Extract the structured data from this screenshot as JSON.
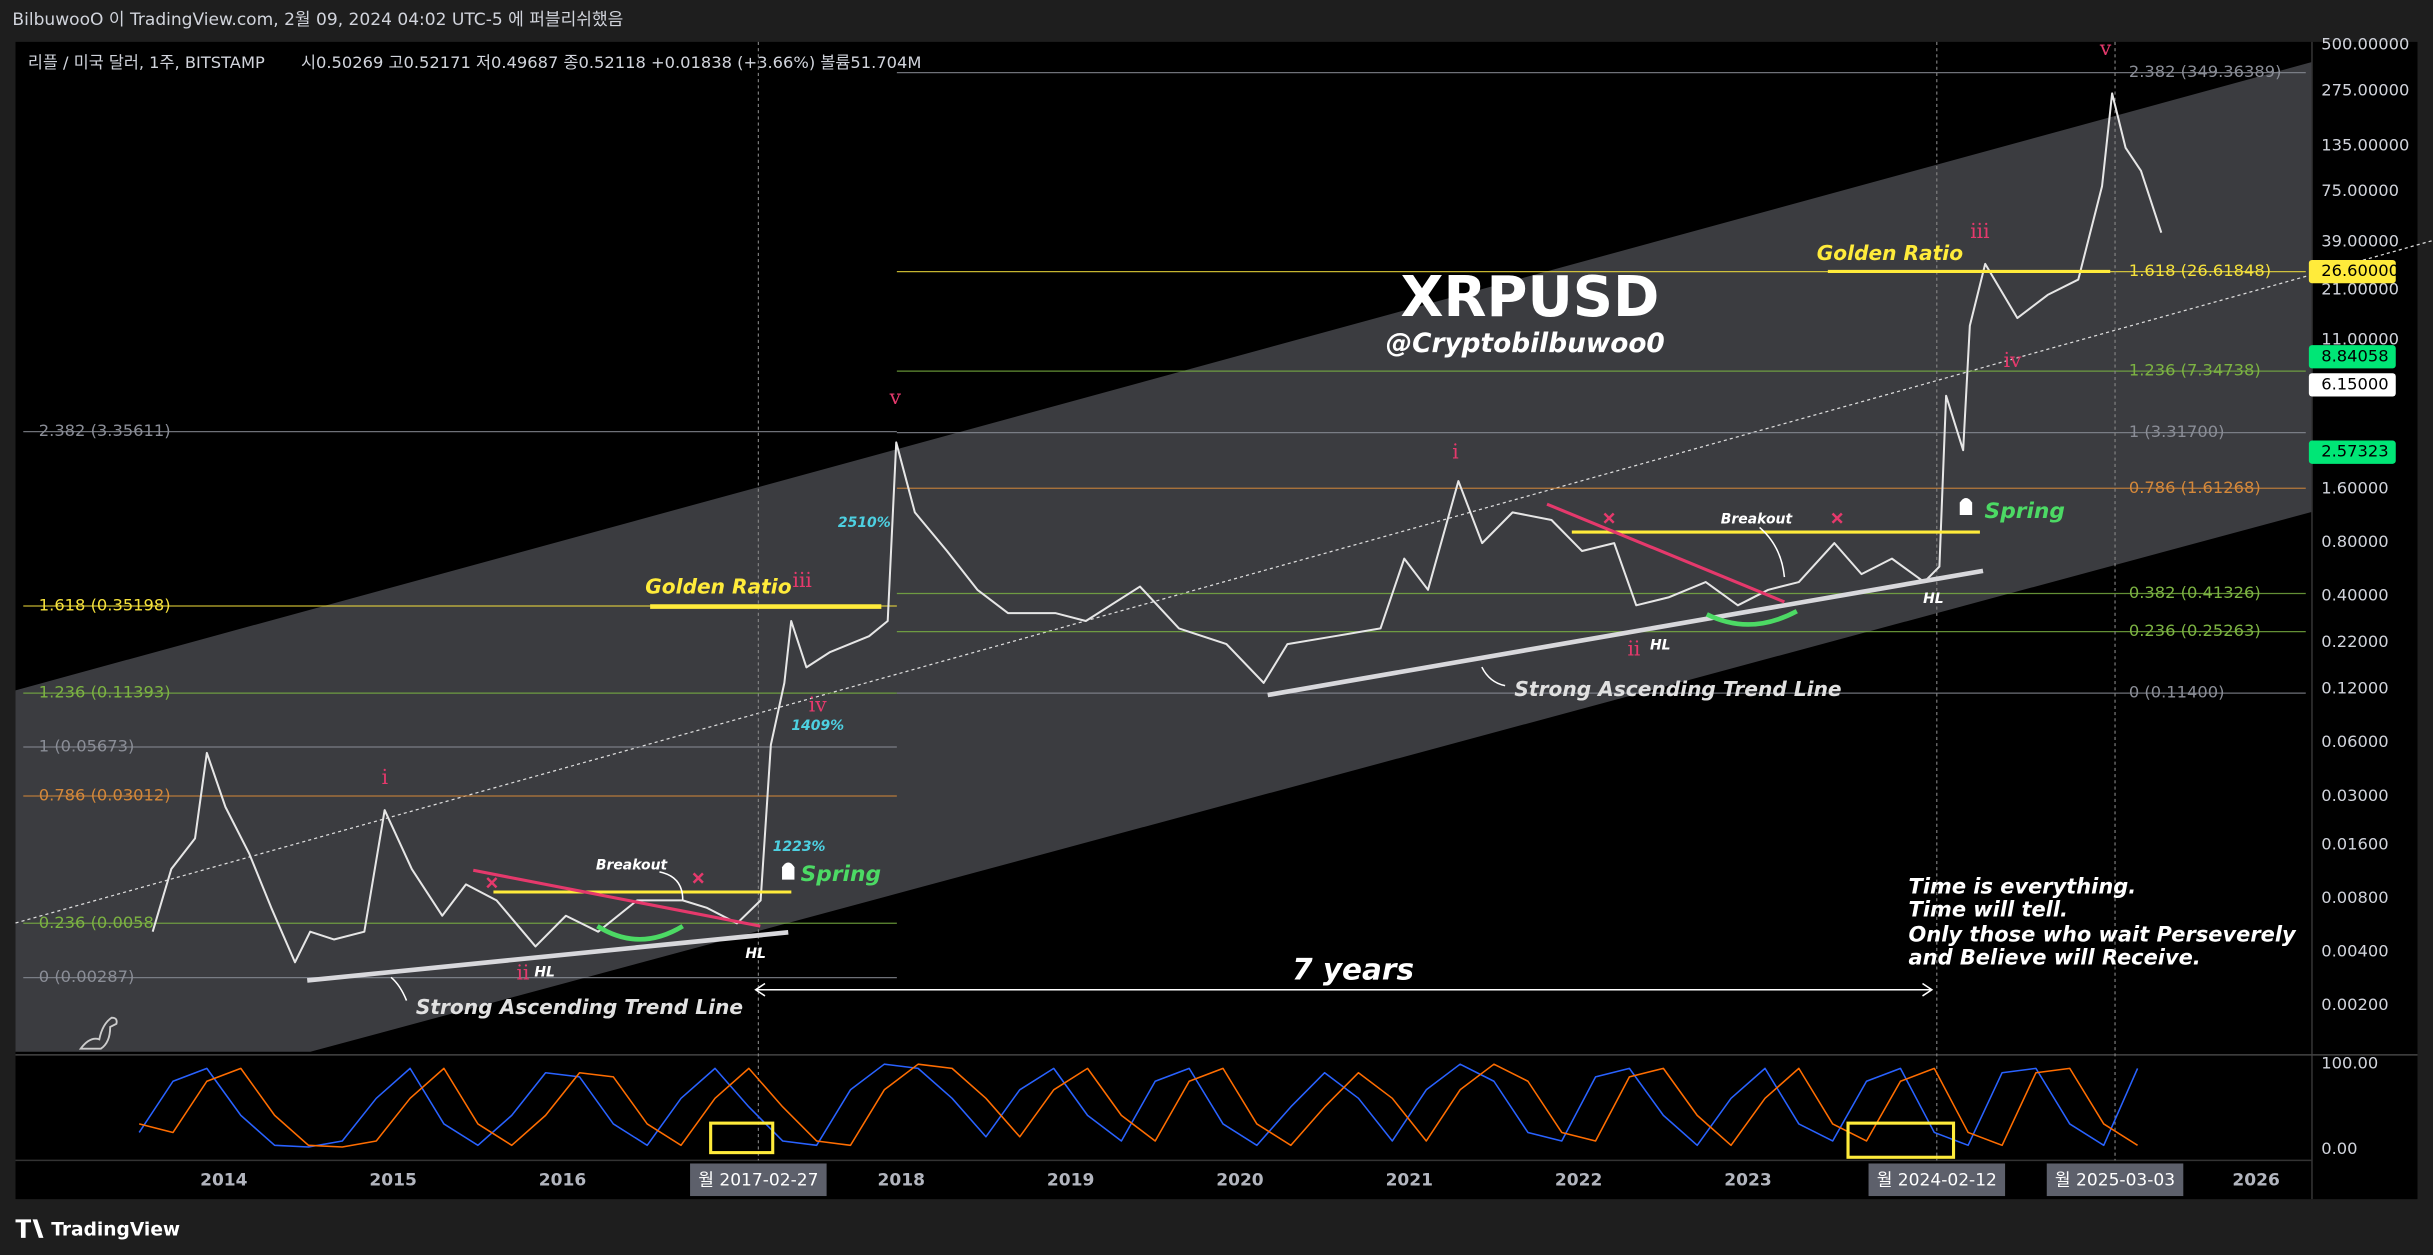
{
  "header": {
    "publisher": "BilbuwooO 이 TradingView.com, 2월 09, 2024 04:02 UTC-5 에 퍼블리쉬했음",
    "symbol": "리플 / 미국 달러, 1주, BITSTAMP",
    "ohlc": "시0.50269 고0.52171 저0.49687 종0.52118 +0.01838 (+3.66%) 볼륨51.704M"
  },
  "chart_data": [
    {
      "type": "line",
      "title": "XRPUSD",
      "subtitle": "@Cryptobilbuwoo0",
      "log_scale": true,
      "color": "#e6e6e6",
      "x": [
        2013.58,
        2013.69,
        2013.83,
        2013.9,
        2014.01,
        2014.15,
        2014.28,
        2014.42,
        2014.51,
        2014.65,
        2014.83,
        2014.95,
        2015.11,
        2015.29,
        2015.43,
        2015.61,
        2015.84,
        2016.02,
        2016.21,
        2016.44,
        2016.71,
        2016.85,
        2017.03,
        2017.17,
        2017.23,
        2017.31,
        2017.35,
        2017.44,
        2017.58,
        2017.81,
        2017.92,
        2017.97,
        2018.08,
        2018.27,
        2018.45,
        2018.63,
        2018.91,
        2019.09,
        2019.41,
        2019.64,
        2019.92,
        2020.14,
        2020.28,
        2020.56,
        2020.83,
        2020.97,
        2021.11,
        2021.29,
        2021.43,
        2021.61,
        2021.84,
        2022.02,
        2022.21,
        2022.34,
        2022.53,
        2022.75,
        2022.94,
        2023.12,
        2023.3,
        2023.51,
        2023.67,
        2023.85,
        2024.04,
        2024.13,
        2024.17,
        2024.27,
        2024.31,
        2024.4,
        2024.59,
        2024.77,
        2024.95,
        2025.09,
        2025.15,
        2025.23,
        2025.32,
        2025.44
      ],
      "values": [
        0.0052,
        0.0117,
        0.0174,
        0.0526,
        0.0261,
        0.0143,
        0.0071,
        0.0035,
        0.0052,
        0.0047,
        0.0052,
        0.0251,
        0.0117,
        0.0064,
        0.0096,
        0.0078,
        0.0043,
        0.0064,
        0.0052,
        0.0078,
        0.0078,
        0.0071,
        0.0058,
        0.0078,
        0.0584,
        0.13,
        0.29,
        0.159,
        0.194,
        0.238,
        0.29,
        2.92,
        1.18,
        0.716,
        0.434,
        0.321,
        0.321,
        0.29,
        0.452,
        0.263,
        0.215,
        0.13,
        0.215,
        0.238,
        0.263,
        0.649,
        0.434,
        1.77,
        0.793,
        1.18,
        1.07,
        0.716,
        0.793,
        0.355,
        0.393,
        0.48,
        0.355,
        0.434,
        0.48,
        0.793,
        0.531,
        0.649,
        0.48,
        0.586,
        5.34,
        2.64,
        13.2,
        29.4,
        14.6,
        19.7,
        24.0,
        80.2,
        267,
        132,
        98,
        44
      ],
      "xlim": [
        2012.77,
        2026.33
      ],
      "ylim": [
        0.0011,
        520
      ],
      "xticks": [
        2014,
        2015,
        2016,
        2018,
        2019,
        2020,
        2021,
        2022,
        2023,
        2026
      ],
      "yticks": [
        {
          "value": 500,
          "label": "500.00000"
        },
        {
          "value": 275,
          "label": "275.00000"
        },
        {
          "value": 135,
          "label": "135.00000"
        },
        {
          "value": 75,
          "label": "75.00000"
        },
        {
          "value": 39,
          "label": "39.00000"
        },
        {
          "value": 21,
          "label": "21.00000"
        },
        {
          "value": 11,
          "label": "11.00000"
        },
        {
          "value": 1.6,
          "label": "1.60000"
        },
        {
          "value": 0.8,
          "label": "0.80000"
        },
        {
          "value": 0.4,
          "label": "0.40000"
        },
        {
          "value": 0.22,
          "label": "0.22000"
        },
        {
          "value": 0.12,
          "label": "0.12000"
        },
        {
          "value": 0.06,
          "label": "0.06000"
        },
        {
          "value": 0.03,
          "label": "0.03000"
        },
        {
          "value": 0.016,
          "label": "0.01600"
        },
        {
          "value": 0.008,
          "label": "0.00800"
        },
        {
          "value": 0.004,
          "label": "0.00400"
        },
        {
          "value": 0.002,
          "label": "0.00200"
        }
      ],
      "price_labels": [
        {
          "value": 26.6,
          "label": "26.60000",
          "color": "#ffeb3b"
        },
        {
          "value": 8.84058,
          "label": "8.84058",
          "color": "#00e676"
        },
        {
          "value": 6.15,
          "label": "6.15000",
          "color": "#ffffff"
        },
        {
          "value": 2.57323,
          "label": "2.57323",
          "color": "#00e676"
        }
      ],
      "fib_left": [
        {
          "value": 3.35611,
          "label": "2.382 (3.35611)",
          "color": "#8a8d96"
        },
        {
          "value": 0.35198,
          "label": "1.618 (0.35198)",
          "color": "#f5e13c"
        },
        {
          "value": 0.11393,
          "label": "1.236 (0.11393)",
          "color": "#7cb342"
        },
        {
          "value": 0.05673,
          "label": "1 (0.05673)",
          "color": "#8a8d96"
        },
        {
          "value": 0.03012,
          "label": "0.786 (0.03012)",
          "color": "#d4883a"
        },
        {
          "value": 0.0058,
          "label": "0.236 (0.0058",
          "color": "#7cb342"
        },
        {
          "value": 0.00287,
          "label": "0 (0.00287)",
          "color": "#8a8d96"
        }
      ],
      "fib_right": [
        {
          "value": 349.36389,
          "label": "2.382 (349.36389)",
          "color": "#8a8d96"
        },
        {
          "value": 26.61848,
          "label": "1.618 (26.61848)",
          "color": "#f5e13c"
        },
        {
          "value": 7.34738,
          "label": "1.236 (7.34738)",
          "color": "#7cb342"
        },
        {
          "value": 3.317,
          "label": "1 (3.31700)",
          "color": "#8a8d96"
        },
        {
          "value": 1.61268,
          "label": "0.786 (1.61268)",
          "color": "#d4883a"
        },
        {
          "value": 0.41326,
          "label": "0.382 (0.41326)",
          "color": "#7cb342"
        },
        {
          "value": 0.25263,
          "label": "0.236 (0.25263)",
          "color": "#7cb342"
        },
        {
          "value": 0.114,
          "label": "0 (0.11400)",
          "color": "#8a8d96"
        }
      ],
      "x_markers": [
        "월 2017-02-27",
        "월 2024-02-12",
        "월 2025-03-03"
      ]
    },
    {
      "type": "line",
      "x": [
        2013.5,
        2013.7,
        2013.9,
        2014.1,
        2014.3,
        2014.5,
        2014.7,
        2014.9,
        2015.1,
        2015.3,
        2015.5,
        2015.7,
        2015.9,
        2016.1,
        2016.3,
        2016.5,
        2016.7,
        2016.9,
        2017.1,
        2017.3,
        2017.5,
        2017.7,
        2017.9,
        2018.1,
        2018.3,
        2018.5,
        2018.7,
        2018.9,
        2019.1,
        2019.3,
        2019.5,
        2019.7,
        2019.9,
        2020.1,
        2020.3,
        2020.5,
        2020.7,
        2020.9,
        2021.1,
        2021.3,
        2021.5,
        2021.7,
        2021.9,
        2022.1,
        2022.3,
        2022.5,
        2022.7,
        2022.9,
        2023.1,
        2023.3,
        2023.5,
        2023.7,
        2023.9,
        2024.1,
        2024.3,
        2024.5,
        2024.7,
        2024.9,
        2025.1,
        2025.3
      ],
      "series": [
        {
          "color": "#2962ff",
          "values": [
            20,
            80,
            95,
            40,
            5,
            3,
            10,
            60,
            95,
            30,
            5,
            40,
            90,
            85,
            30,
            5,
            60,
            95,
            50,
            10,
            5,
            70,
            100,
            95,
            60,
            15,
            70,
            95,
            40,
            10,
            80,
            95,
            30,
            5,
            50,
            90,
            60,
            10,
            70,
            100,
            80,
            20,
            10,
            85,
            95,
            40,
            5,
            60,
            95,
            30,
            10,
            80,
            95,
            20,
            5,
            90,
            95,
            30,
            5,
            95
          ]
        },
        {
          "color": "#ff6d00",
          "values": [
            30,
            20,
            80,
            95,
            40,
            5,
            3,
            10,
            60,
            95,
            30,
            5,
            40,
            90,
            85,
            30,
            5,
            60,
            95,
            50,
            10,
            5,
            70,
            100,
            95,
            60,
            15,
            70,
            95,
            40,
            10,
            80,
            95,
            30,
            5,
            50,
            90,
            60,
            10,
            70,
            100,
            80,
            20,
            10,
            85,
            95,
            40,
            5,
            60,
            95,
            30,
            10,
            80,
            95,
            20,
            5,
            90,
            95,
            30,
            5
          ]
        }
      ],
      "xlim": [
        2012.77,
        2026.33
      ],
      "ylim": [
        -12.7,
        110.9
      ],
      "yticks": [
        {
          "value": 100,
          "label": "100.00"
        },
        {
          "value": 0,
          "label": "0.00"
        }
      ]
    }
  ],
  "annotations": {
    "golden_ratio": [
      "Golden Ratio",
      "Golden Ratio"
    ],
    "spring": [
      "Spring",
      "Spring"
    ],
    "breakout": [
      "Breakout",
      "Breakout"
    ],
    "trend_line": [
      "Strong Ascending Trend Line",
      "Strong Ascending Trend Line"
    ],
    "hl": [
      "HL",
      "HL",
      "HL",
      "HL"
    ],
    "waves_left": [
      "i",
      "ii",
      "iii",
      "iv",
      "v"
    ],
    "waves_right": [
      "i",
      "ii",
      "iii",
      "iv",
      "v"
    ],
    "gains": [
      "2510%",
      "1409%",
      "1223%"
    ],
    "span": "7 years",
    "quote": [
      "Time is everything.",
      "Time will tell.",
      "Only those who wait Perseverely",
      "and Believe will Receive."
    ]
  },
  "footer": {
    "brand": "TradingView"
  }
}
